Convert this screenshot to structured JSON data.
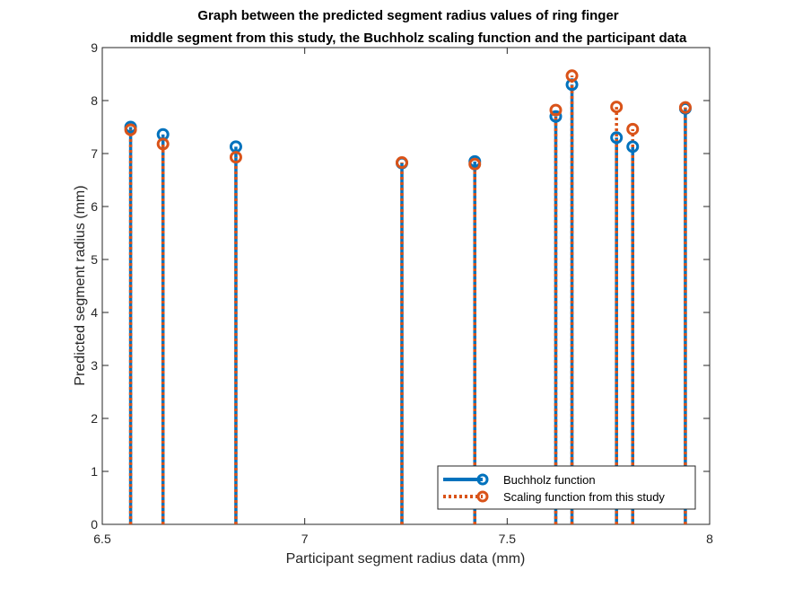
{
  "chart_data": {
    "type": "stem",
    "title": [
      "Graph between the predicted segment radius values of ring finger",
      "middle segment from this study, the Buchholz scaling function and the participant data"
    ],
    "xlabel": "Participant segment radius data (mm)",
    "ylabel": "Predicted segment radius (mm)",
    "xlim": [
      6.5,
      8
    ],
    "ylim": [
      0,
      9
    ],
    "xticks": [
      "6.5",
      "7",
      "7.5",
      "8"
    ],
    "yticks": [
      "0",
      "1",
      "2",
      "3",
      "4",
      "5",
      "6",
      "7",
      "8",
      "9"
    ],
    "x": [
      6.57,
      6.65,
      6.83,
      7.24,
      7.42,
      7.62,
      7.66,
      7.77,
      7.81,
      7.94
    ],
    "series": [
      {
        "name": "Buchholz function",
        "color": "#0072BD",
        "line_style": "solid",
        "values": [
          7.5,
          7.36,
          7.13,
          6.82,
          6.85,
          7.7,
          8.3,
          7.3,
          7.13,
          7.85
        ]
      },
      {
        "name": "Scaling function from this study",
        "color": "#D95319",
        "line_style": "dotted",
        "values": [
          7.45,
          7.18,
          6.93,
          6.83,
          6.8,
          7.82,
          8.47,
          7.88,
          7.46,
          7.87
        ]
      }
    ],
    "legend_position": "bottom-right",
    "grid": false
  }
}
